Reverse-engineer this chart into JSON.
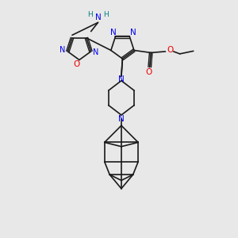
{
  "bg_color": "#e8e8e8",
  "bond_color": "#1a1a1a",
  "N_color": "#0000ee",
  "O_color": "#ee0000",
  "H_color": "#008080",
  "figsize": [
    3.0,
    3.0
  ],
  "dpi": 100,
  "xlim": [
    0,
    10
  ],
  "ylim": [
    0,
    10
  ]
}
